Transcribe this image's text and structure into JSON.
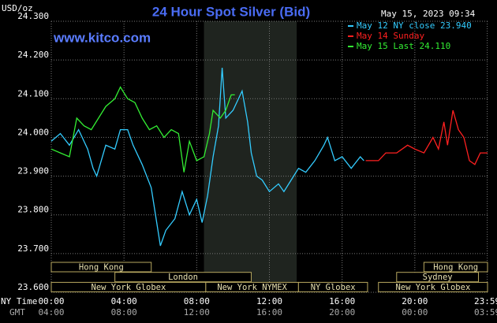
{
  "chart_data": {
    "type": "line",
    "title": "24 Hour Spot Silver (Bid)",
    "source": "www.kitco.com",
    "timestamp": "May 15, 2023 09:34",
    "y_label": "USD/oz",
    "x_label": "NY Time",
    "x2_label": "GMT",
    "xlim": [
      0,
      24
    ],
    "ylim": [
      23.6,
      24.3
    ],
    "grid": true,
    "xticks": [
      {
        "value": 0,
        "label": "00:00"
      },
      {
        "value": 4,
        "label": "04:00"
      },
      {
        "value": 8,
        "label": "08:00"
      },
      {
        "value": 12,
        "label": "12:00"
      },
      {
        "value": 16,
        "label": "16:00"
      },
      {
        "value": 20,
        "label": "20:00"
      },
      {
        "value": 23.983,
        "label": "23:59"
      }
    ],
    "x2ticks": [
      {
        "value": 0,
        "label": "04:00"
      },
      {
        "value": 4,
        "label": "08:00"
      },
      {
        "value": 8,
        "label": "12:00"
      },
      {
        "value": 12,
        "label": "16:00"
      },
      {
        "value": 16,
        "label": "20:00"
      },
      {
        "value": 20,
        "label": "00:00"
      },
      {
        "value": 23.983,
        "label": "03:59"
      }
    ],
    "yticks": [
      {
        "value": 23.6,
        "label": "23.600"
      },
      {
        "value": 23.7,
        "label": "23.700"
      },
      {
        "value": 23.8,
        "label": "23.800"
      },
      {
        "value": 23.9,
        "label": "23.900"
      },
      {
        "value": 24.0,
        "label": "24.000"
      },
      {
        "value": 24.1,
        "label": "24.100"
      },
      {
        "value": 24.2,
        "label": "24.200"
      },
      {
        "value": 24.3,
        "label": "24.300"
      }
    ],
    "highlight": [
      8.4,
      13.5
    ],
    "sessions": [
      [
        {
          "label": "Hong Kong",
          "start": 0,
          "end": 5.5
        },
        {
          "label": "Hong Kong",
          "start": 20.5,
          "end": 24
        }
      ],
      [
        {
          "label": "London",
          "start": 3.5,
          "end": 11
        },
        {
          "label": "Sydney",
          "start": 19,
          "end": 23.5
        }
      ],
      [
        {
          "label": "New York Globex",
          "start": 0,
          "end": 8.5
        },
        {
          "label": "New York NYMEX",
          "start": 8.5,
          "end": 13.6
        },
        {
          "label": "NY Globex",
          "start": 13.6,
          "end": 17.4
        },
        {
          "label": "New York Globex",
          "start": 18,
          "end": 24
        }
      ]
    ],
    "series": [
      {
        "name": "May 12 NY close 23.940",
        "color": "#33ccff",
        "x": [
          0,
          0.5,
          1.0,
          1.5,
          2.0,
          2.3,
          2.5,
          3.0,
          3.5,
          3.8,
          4.2,
          4.5,
          5.0,
          5.5,
          6.0,
          6.3,
          6.8,
          7.2,
          7.6,
          8.0,
          8.3,
          8.6,
          8.9,
          9.2,
          9.4,
          9.6,
          10.0,
          10.5,
          10.8,
          11.0,
          11.3,
          11.6,
          12.0,
          12.5,
          12.8,
          13.2,
          13.6,
          14.0,
          14.5,
          15.0,
          15.2,
          15.6,
          16.0,
          16.5,
          17.0,
          17.2
        ],
        "values": [
          23.99,
          24.01,
          23.98,
          24.02,
          23.97,
          23.92,
          23.9,
          23.98,
          23.97,
          24.02,
          24.02,
          23.98,
          23.93,
          23.87,
          23.72,
          23.76,
          23.79,
          23.86,
          23.8,
          23.84,
          23.78,
          23.85,
          23.95,
          24.03,
          24.18,
          24.05,
          24.07,
          24.12,
          24.04,
          23.96,
          23.9,
          23.89,
          23.86,
          23.88,
          23.86,
          23.89,
          23.92,
          23.91,
          23.94,
          23.98,
          24.0,
          23.94,
          23.95,
          23.92,
          23.95,
          23.94
        ]
      },
      {
        "name": "May 14 Sunday",
        "color": "#ff2020",
        "x": [
          17.3,
          18.0,
          18.4,
          19.0,
          19.6,
          20.0,
          20.5,
          21.0,
          21.3,
          21.6,
          21.8,
          22.1,
          22.4,
          22.7,
          23.0,
          23.3,
          23.6,
          24.0
        ],
        "values": [
          23.94,
          23.94,
          23.96,
          23.96,
          23.98,
          23.97,
          23.96,
          24.0,
          23.97,
          24.04,
          23.98,
          24.07,
          24.02,
          24.0,
          23.94,
          23.93,
          23.96,
          23.96
        ]
      },
      {
        "name": "May 15 Last 24.110",
        "color": "#33ee33",
        "x": [
          0,
          0.5,
          1.0,
          1.4,
          1.8,
          2.2,
          2.6,
          3.0,
          3.5,
          3.8,
          4.2,
          4.6,
          5.0,
          5.4,
          5.8,
          6.2,
          6.6,
          7.0,
          7.3,
          7.6,
          8.0,
          8.4,
          8.7,
          8.9,
          9.3,
          9.6,
          9.9,
          10.1
        ],
        "values": [
          23.97,
          23.96,
          23.95,
          24.05,
          24.03,
          24.02,
          24.05,
          24.08,
          24.1,
          24.13,
          24.1,
          24.09,
          24.05,
          24.02,
          24.03,
          24.0,
          24.02,
          24.01,
          23.91,
          23.99,
          23.94,
          23.95,
          24.01,
          24.07,
          24.05,
          24.07,
          24.11,
          24.11
        ]
      }
    ]
  }
}
